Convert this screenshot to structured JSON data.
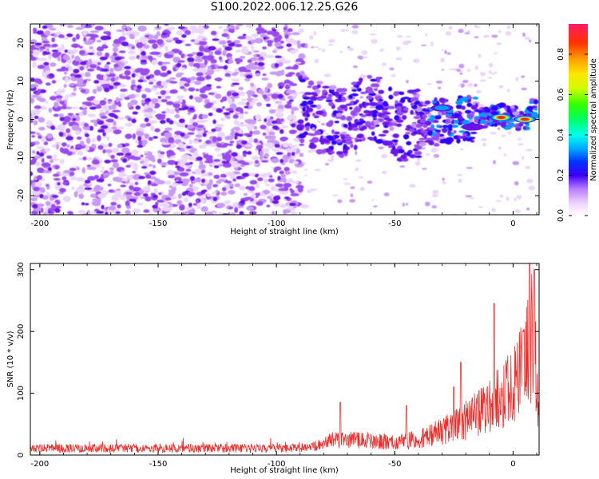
{
  "title": "S100.2022.006.12.25.G26",
  "chart_data": [
    {
      "type": "heatmap",
      "description_key": "spectrogram",
      "xlabel": "Height of straight line (km)",
      "ylabel": "Frequency (Hz)",
      "xlim": [
        -204,
        11
      ],
      "ylim": [
        -25,
        25
      ],
      "xticks": [
        -200,
        -150,
        -100,
        -50,
        0
      ],
      "yticks": [
        -20,
        -10,
        0,
        10,
        20
      ],
      "colorbar": {
        "label": "Normalized spectral amplitude",
        "range": [
          0.0,
          0.95
        ],
        "ticks": [
          0.0,
          0.2,
          0.4,
          0.6,
          0.8
        ]
      },
      "features": {
        "noise_region_x": [
          -204,
          -92
        ],
        "signal_track": [
          {
            "x": -85,
            "y": 0
          },
          {
            "x": -70,
            "y": -1
          },
          {
            "x": -60,
            "y": 4
          },
          {
            "x": -50,
            "y": -2
          },
          {
            "x": -35,
            "y": -1
          },
          {
            "x": -25,
            "y": 0
          },
          {
            "x": -15,
            "y": 0
          },
          {
            "x": -5,
            "y": 1
          },
          {
            "x": 5,
            "y": 0
          },
          {
            "x": 10,
            "y": 3
          }
        ],
        "peaks": [
          {
            "x": -5,
            "y": 0.5,
            "amp": 0.9
          },
          {
            "x": 5,
            "y": 0,
            "amp": 0.95
          },
          {
            "x": -30,
            "y": 3,
            "amp": 0.35
          },
          {
            "x": -17,
            "y": -2,
            "amp": 0.3
          }
        ]
      }
    },
    {
      "type": "line",
      "description_key": "snr",
      "xlabel": "Height of straight line (km)",
      "ylabel": "SNR (10 * v/v)",
      "xlim": [
        -204,
        11
      ],
      "ylim": [
        0,
        310
      ],
      "xticks": [
        -200,
        -150,
        -100,
        -50,
        0
      ],
      "yticks": [
        0,
        100,
        200,
        300
      ],
      "color": "#e8302e",
      "series": [
        {
          "name": "SNR",
          "envelope": [
            {
              "x": -204,
              "y": 12
            },
            {
              "x": -150,
              "y": 12
            },
            {
              "x": -100,
              "y": 11
            },
            {
              "x": -85,
              "y": 15
            },
            {
              "x": -75,
              "y": 30
            },
            {
              "x": -65,
              "y": 28
            },
            {
              "x": -50,
              "y": 25
            },
            {
              "x": -40,
              "y": 30
            },
            {
              "x": -30,
              "y": 45
            },
            {
              "x": -20,
              "y": 65
            },
            {
              "x": -10,
              "y": 90
            },
            {
              "x": -5,
              "y": 110
            },
            {
              "x": 0,
              "y": 130
            },
            {
              "x": 5,
              "y": 170
            },
            {
              "x": 9,
              "y": 240
            },
            {
              "x": 11,
              "y": 60
            }
          ],
          "spikes": [
            {
              "x": -73,
              "y": 85
            },
            {
              "x": -45,
              "y": 80
            },
            {
              "x": -25,
              "y": 110
            },
            {
              "x": -22,
              "y": 150
            },
            {
              "x": -8,
              "y": 245
            },
            {
              "x": 7,
              "y": 310
            },
            {
              "x": 9,
              "y": 300
            },
            {
              "x": 4,
              "y": 200
            }
          ]
        }
      ]
    }
  ]
}
